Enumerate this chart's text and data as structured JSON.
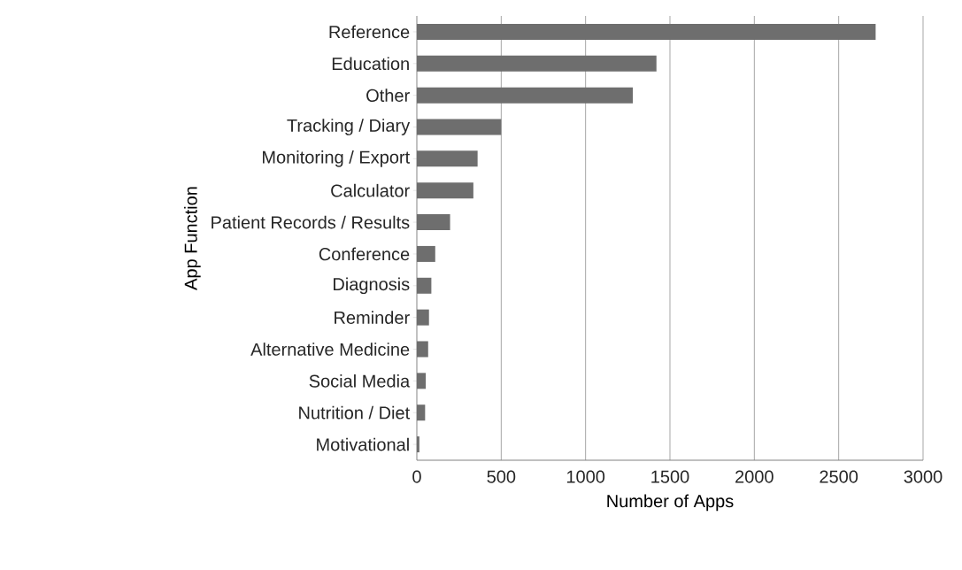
{
  "chart_data": {
    "type": "bar",
    "orientation": "horizontal",
    "xlabel": "Number of Apps",
    "ylabel": "App Function",
    "categories": [
      "Reference",
      "Education",
      "Other",
      "Tracking / Diary",
      "Monitoring / Export",
      "Calculator",
      "Patient Records / Results",
      "Conference",
      "Diagnosis",
      "Reminder",
      "Alternative Medicine",
      "Social Media",
      "Nutrition / Diet",
      "Motivational"
    ],
    "values": [
      2720,
      1420,
      1280,
      500,
      360,
      335,
      197,
      109,
      86,
      72,
      67,
      53,
      49,
      15
    ],
    "color": "#6e6e6e",
    "xlim": [
      0,
      3000
    ],
    "xticks": [
      0,
      500,
      1000,
      1500,
      2000,
      2500,
      3000
    ],
    "grid": "x"
  }
}
